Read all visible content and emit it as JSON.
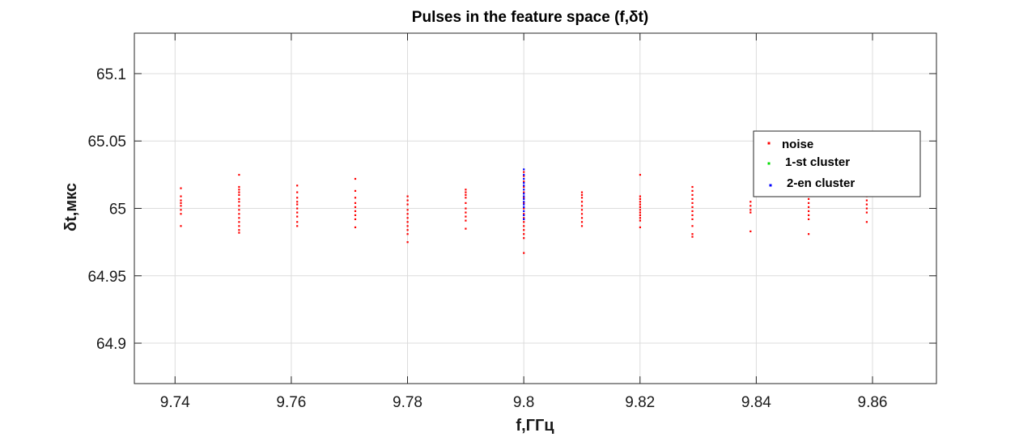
{
  "chart_data": {
    "type": "scatter",
    "title": "Pulses in the feature space  (f,δt)",
    "xlabel": "f,ГГц",
    "ylabel": "δt,мкс",
    "xlim": [
      9.733,
      9.871
    ],
    "ylim": [
      64.87,
      65.13
    ],
    "xticks": [
      9.74,
      9.76,
      9.78,
      9.8,
      9.82,
      9.84,
      9.86
    ],
    "yticks": [
      64.9,
      64.95,
      65,
      65.05,
      65.1
    ],
    "xtick_labels": [
      "9.74",
      "9.76",
      "9.78",
      "9.8",
      "9.82",
      "9.84",
      "9.86"
    ],
    "ytick_labels": [
      "64.9",
      "64.95",
      "65",
      "65.05",
      "65.1"
    ],
    "grid": true,
    "legend_position": "top-right",
    "series": [
      {
        "name": "noise",
        "color": "#ff0000",
        "points": [
          [
            9.741,
            65.015
          ],
          [
            9.741,
            65.009
          ],
          [
            9.741,
            65.006
          ],
          [
            9.741,
            65.004
          ],
          [
            9.741,
            65.002
          ],
          [
            9.741,
            64.999
          ],
          [
            9.741,
            64.996
          ],
          [
            9.741,
            64.987
          ],
          [
            9.751,
            65.025
          ],
          [
            9.751,
            65.016
          ],
          [
            9.751,
            65.014
          ],
          [
            9.751,
            65.012
          ],
          [
            9.751,
            65.01
          ],
          [
            9.751,
            65.007
          ],
          [
            9.751,
            65.005
          ],
          [
            9.751,
            65.002
          ],
          [
            9.751,
            64.999
          ],
          [
            9.751,
            64.996
          ],
          [
            9.751,
            64.993
          ],
          [
            9.751,
            64.99
          ],
          [
            9.751,
            64.987
          ],
          [
            9.751,
            64.984
          ],
          [
            9.751,
            64.982
          ],
          [
            9.761,
            65.017
          ],
          [
            9.761,
            65.012
          ],
          [
            9.761,
            65.008
          ],
          [
            9.761,
            65.005
          ],
          [
            9.761,
            65.003
          ],
          [
            9.761,
            65.0
          ],
          [
            9.761,
            64.997
          ],
          [
            9.761,
            64.994
          ],
          [
            9.761,
            64.99
          ],
          [
            9.761,
            64.987
          ],
          [
            9.771,
            65.022
          ],
          [
            9.771,
            65.013
          ],
          [
            9.771,
            65.008
          ],
          [
            9.771,
            65.004
          ],
          [
            9.771,
            65.001
          ],
          [
            9.771,
            64.998
          ],
          [
            9.771,
            64.995
          ],
          [
            9.771,
            64.992
          ],
          [
            9.771,
            64.986
          ],
          [
            9.78,
            65.009
          ],
          [
            9.78,
            65.006
          ],
          [
            9.78,
            65.003
          ],
          [
            9.78,
            64.999
          ],
          [
            9.78,
            64.996
          ],
          [
            9.78,
            64.993
          ],
          [
            9.78,
            64.99
          ],
          [
            9.78,
            64.987
          ],
          [
            9.78,
            64.984
          ],
          [
            9.78,
            64.981
          ],
          [
            9.78,
            64.975
          ],
          [
            9.79,
            65.014
          ],
          [
            9.79,
            65.012
          ],
          [
            9.79,
            65.01
          ],
          [
            9.79,
            65.008
          ],
          [
            9.79,
            65.004
          ],
          [
            9.79,
            65.0
          ],
          [
            9.79,
            64.997
          ],
          [
            9.79,
            64.994
          ],
          [
            9.79,
            64.991
          ],
          [
            9.79,
            64.985
          ],
          [
            9.8,
            65.027
          ],
          [
            9.8,
            65.024
          ],
          [
            9.8,
            65.02
          ],
          [
            9.8,
            65.016
          ],
          [
            9.8,
            65.012
          ],
          [
            9.8,
            65.008
          ],
          [
            9.8,
            65.004
          ],
          [
            9.8,
            65.0
          ],
          [
            9.8,
            64.996
          ],
          [
            9.8,
            64.993
          ],
          [
            9.8,
            64.99
          ],
          [
            9.8,
            64.987
          ],
          [
            9.8,
            64.984
          ],
          [
            9.8,
            64.981
          ],
          [
            9.8,
            64.978
          ],
          [
            9.8,
            64.967
          ],
          [
            9.81,
            65.012
          ],
          [
            9.81,
            65.01
          ],
          [
            9.81,
            65.008
          ],
          [
            9.81,
            65.005
          ],
          [
            9.81,
            65.002
          ],
          [
            9.81,
            64.999
          ],
          [
            9.81,
            64.996
          ],
          [
            9.81,
            64.993
          ],
          [
            9.81,
            64.99
          ],
          [
            9.81,
            64.987
          ],
          [
            9.82,
            65.025
          ],
          [
            9.82,
            65.009
          ],
          [
            9.82,
            65.007
          ],
          [
            9.82,
            65.005
          ],
          [
            9.82,
            65.003
          ],
          [
            9.82,
            65.001
          ],
          [
            9.82,
            64.999
          ],
          [
            9.82,
            64.997
          ],
          [
            9.82,
            64.995
          ],
          [
            9.82,
            64.993
          ],
          [
            9.82,
            64.991
          ],
          [
            9.82,
            64.986
          ],
          [
            9.829,
            65.016
          ],
          [
            9.829,
            65.013
          ],
          [
            9.829,
            65.01
          ],
          [
            9.829,
            65.007
          ],
          [
            9.829,
            65.004
          ],
          [
            9.829,
            65.001
          ],
          [
            9.829,
            64.998
          ],
          [
            9.829,
            64.995
          ],
          [
            9.829,
            64.992
          ],
          [
            9.829,
            64.987
          ],
          [
            9.829,
            64.981
          ],
          [
            9.829,
            64.979
          ],
          [
            9.839,
            65.005
          ],
          [
            9.839,
            65.002
          ],
          [
            9.839,
            64.999
          ],
          [
            9.839,
            64.997
          ],
          [
            9.839,
            64.983
          ],
          [
            9.849,
            65.013
          ],
          [
            9.849,
            65.01
          ],
          [
            9.849,
            65.007
          ],
          [
            9.849,
            65.004
          ],
          [
            9.849,
            65.001
          ],
          [
            9.849,
            64.998
          ],
          [
            9.849,
            64.995
          ],
          [
            9.849,
            64.992
          ],
          [
            9.849,
            64.981
          ],
          [
            9.859,
            65.009
          ],
          [
            9.859,
            65.006
          ],
          [
            9.859,
            65.003
          ],
          [
            9.859,
            65.0
          ],
          [
            9.859,
            64.997
          ],
          [
            9.859,
            64.99
          ]
        ]
      },
      {
        "name": "1-st cluster",
        "color": "#00dd00",
        "points": []
      },
      {
        "name": "2-en cluster",
        "color": "#0000ff",
        "points": [
          [
            9.8,
            65.029
          ],
          [
            9.8,
            65.025
          ],
          [
            9.8,
            65.022
          ],
          [
            9.8,
            65.019
          ],
          [
            9.8,
            65.017
          ],
          [
            9.8,
            65.014
          ],
          [
            9.8,
            65.011
          ],
          [
            9.8,
            65.009
          ],
          [
            9.8,
            65.007
          ],
          [
            9.8,
            65.005
          ],
          [
            9.8,
            65.003
          ],
          [
            9.8,
            65.001
          ],
          [
            9.8,
            64.998
          ],
          [
            9.8,
            64.995
          ],
          [
            9.8,
            64.992
          ]
        ]
      }
    ]
  }
}
